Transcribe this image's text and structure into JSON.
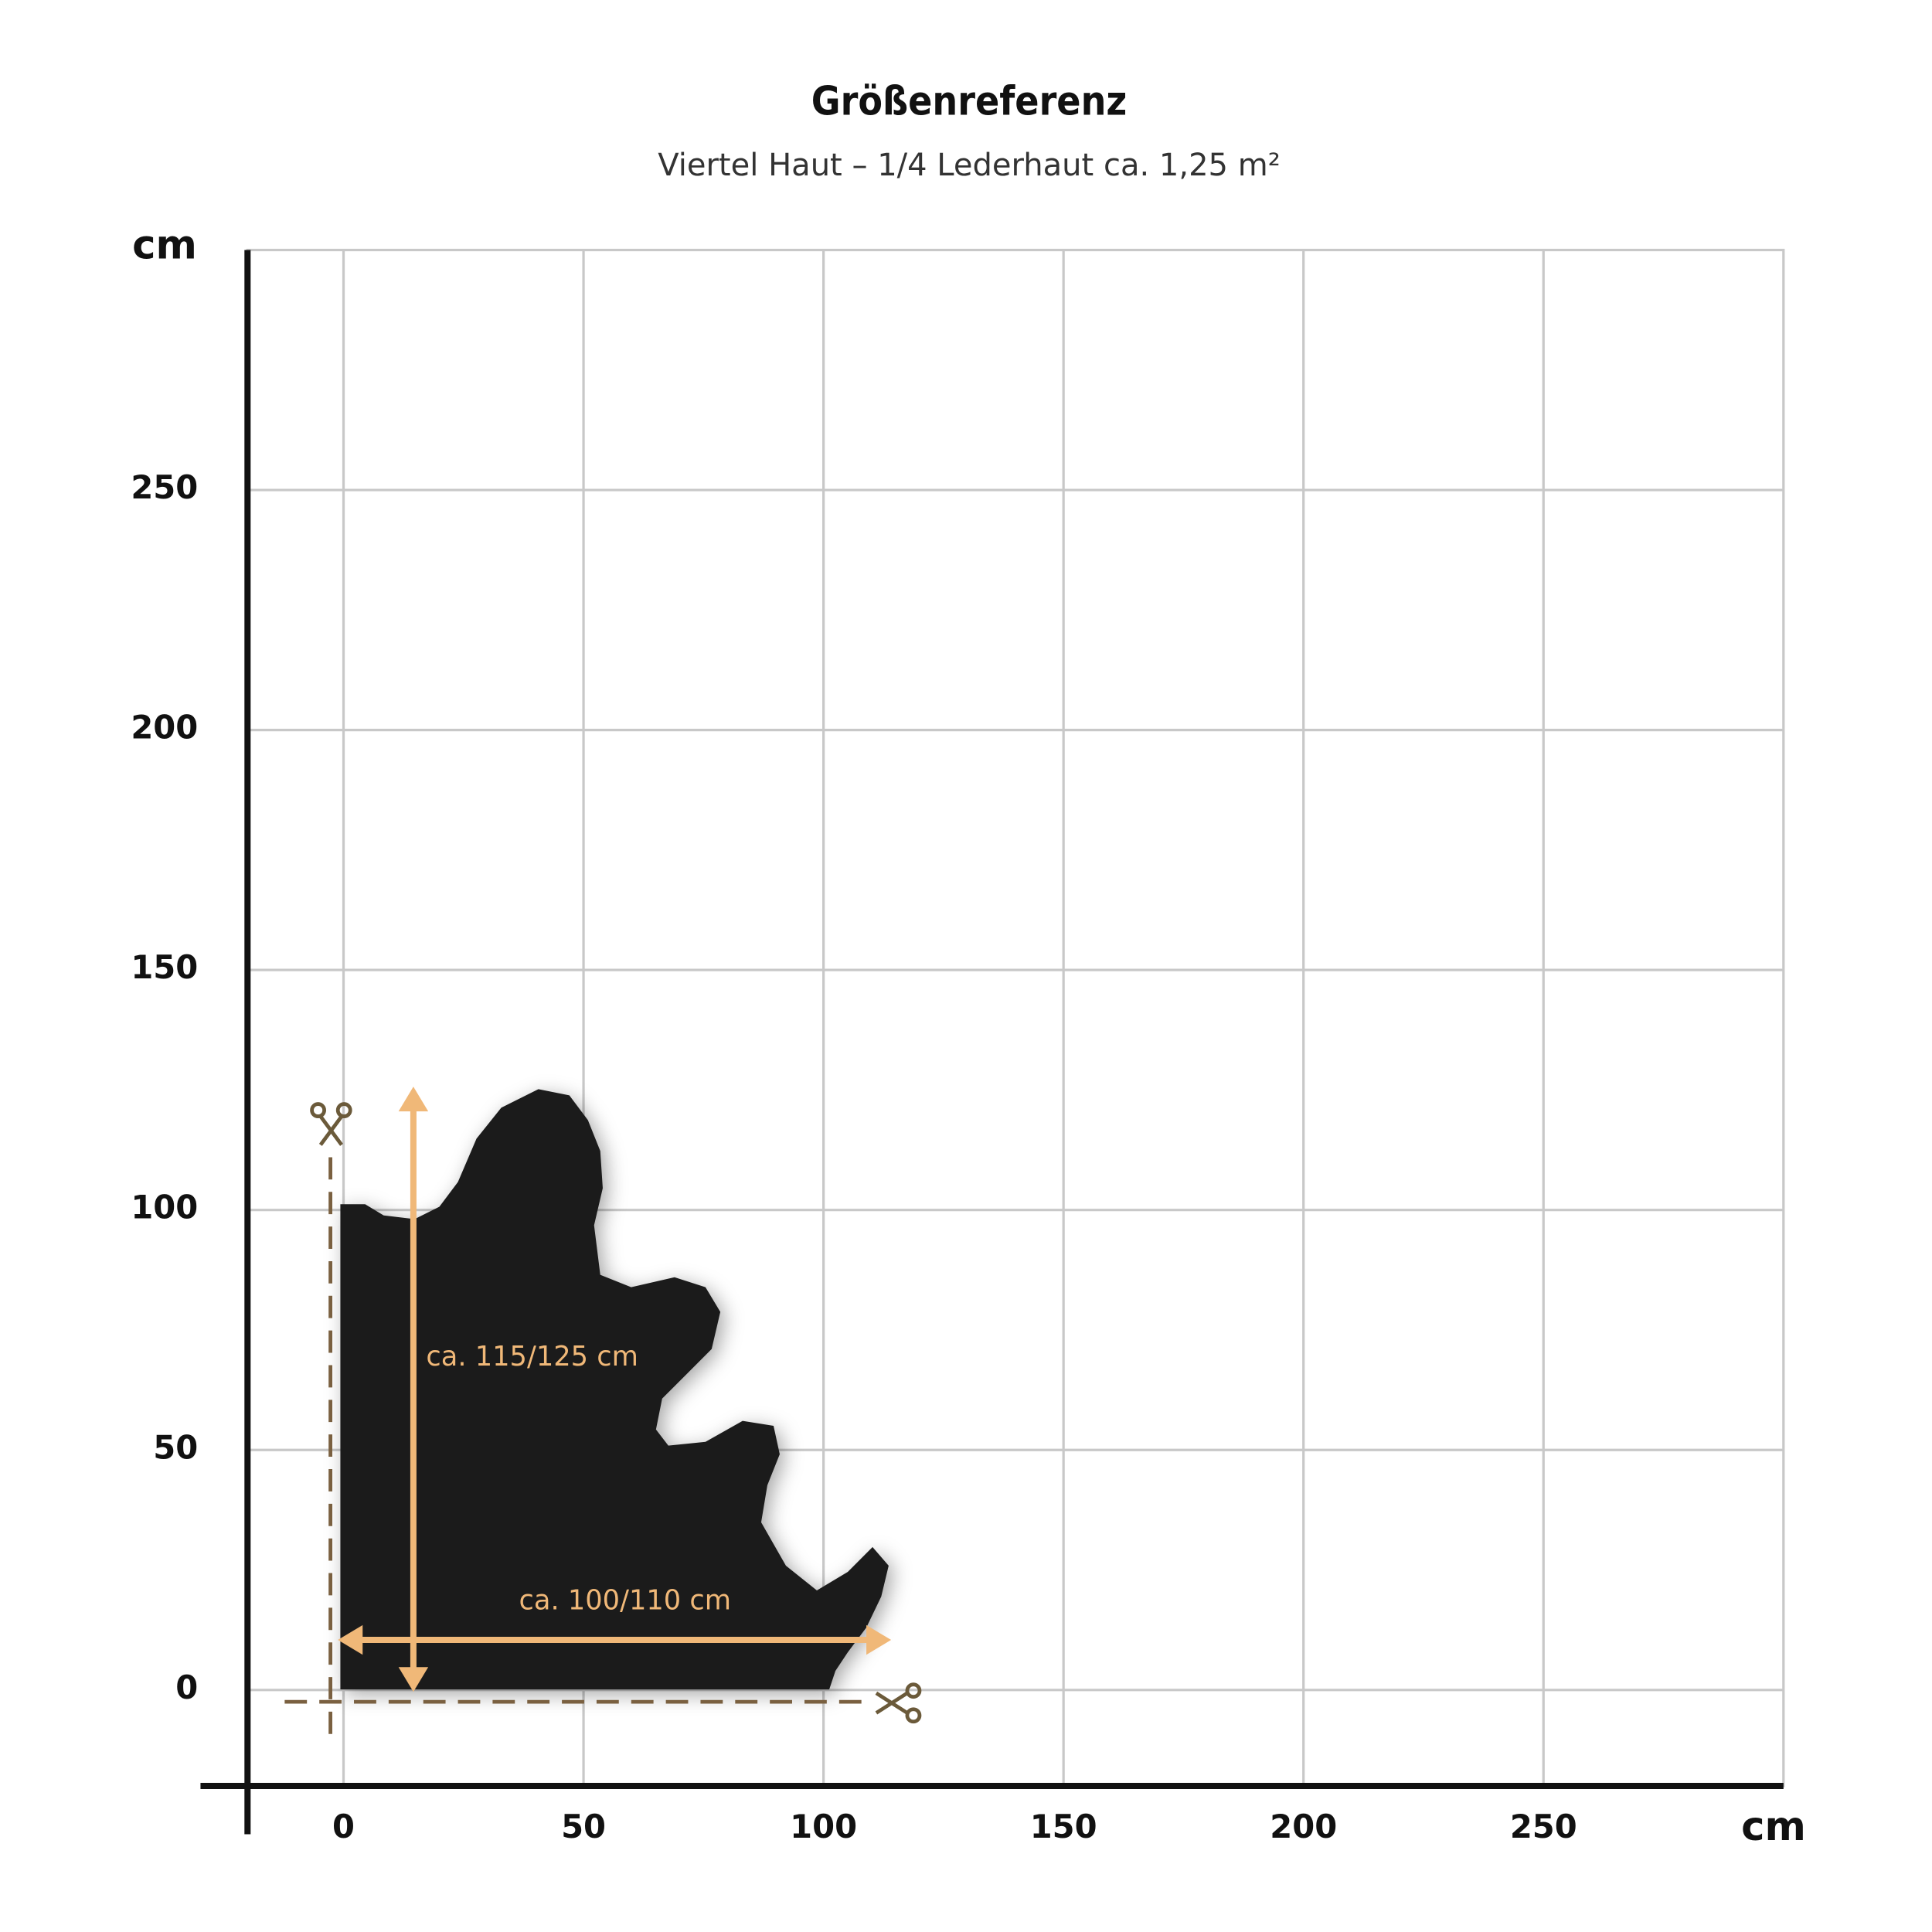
{
  "title": "Größenreferenz",
  "subtitle": "Viertel Haut – 1/4 Lederhaut ca. 1,25 m²",
  "x_axis": {
    "label": "cm",
    "lim": [
      -20,
      300
    ],
    "ticks": [
      0,
      50,
      100,
      150,
      200,
      250
    ]
  },
  "y_axis": {
    "label": "cm",
    "lim": [
      -20,
      300
    ],
    "ticks": [
      0,
      50,
      100,
      150,
      200,
      250
    ]
  },
  "annotations": {
    "height": "ca. 115/125 cm",
    "width": "ca. 100/110 cm"
  }
}
